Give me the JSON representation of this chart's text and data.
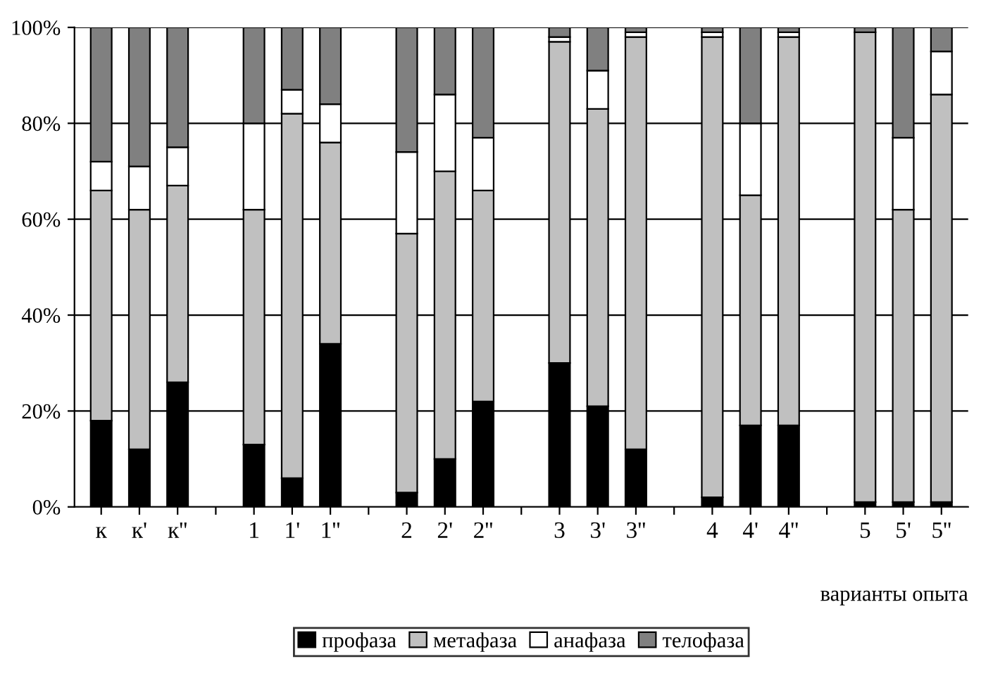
{
  "chart_data": {
    "type": "bar",
    "stacked": true,
    "xlabel": "варианты опыта",
    "categories": [
      "к",
      "к'",
      "к''",
      null,
      "1",
      "1'",
      "1''",
      null,
      "2",
      "2'",
      "2''",
      null,
      "3",
      "3'",
      "3''",
      null,
      "4",
      "4'",
      "4''",
      null,
      "5",
      "5'",
      "5''"
    ],
    "series": [
      {
        "name": "профаза",
        "color": "#000000",
        "values": [
          18,
          12,
          26,
          null,
          13,
          6,
          34,
          null,
          3,
          10,
          22,
          null,
          30,
          21,
          12,
          null,
          2,
          17,
          17,
          null,
          1,
          1,
          1
        ]
      },
      {
        "name": "метафаза",
        "color": "#c0c0c0",
        "values": [
          48,
          50,
          41,
          null,
          49,
          76,
          42,
          null,
          54,
          60,
          44,
          null,
          67,
          62,
          86,
          null,
          96,
          48,
          81,
          null,
          98,
          61,
          85
        ]
      },
      {
        "name": "анафаза",
        "color": "#ffffff",
        "values": [
          6,
          9,
          8,
          null,
          18,
          5,
          8,
          null,
          17,
          16,
          11,
          null,
          1,
          8,
          1,
          null,
          1,
          15,
          1,
          null,
          0,
          15,
          9
        ]
      },
      {
        "name": "телофаза",
        "color": "#808080",
        "values": [
          28,
          29,
          25,
          null,
          20,
          13,
          16,
          null,
          26,
          14,
          23,
          null,
          2,
          9,
          1,
          null,
          1,
          20,
          1,
          null,
          1,
          23,
          5
        ]
      }
    ],
    "ylim": [
      0,
      100
    ],
    "yticks": [
      {
        "value": 0,
        "label": "0%"
      },
      {
        "value": 20,
        "label": "20%"
      },
      {
        "value": 40,
        "label": "40%"
      },
      {
        "value": 60,
        "label": "60%"
      },
      {
        "value": 80,
        "label": "80%"
      },
      {
        "value": 100,
        "label": "100%"
      }
    ],
    "grid": "y",
    "legend": "bottom"
  }
}
